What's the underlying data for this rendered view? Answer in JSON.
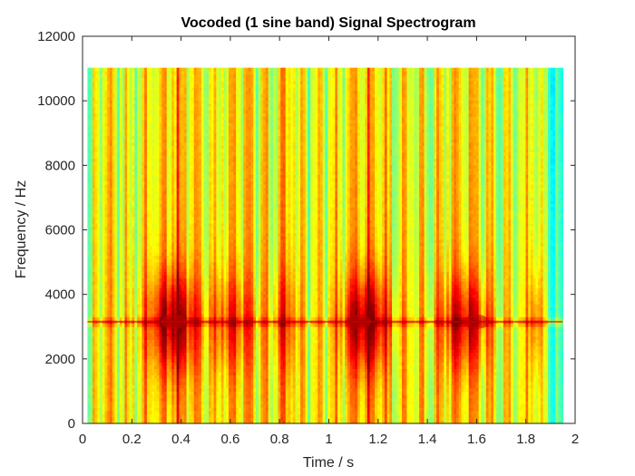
{
  "chart_data": {
    "type": "heatmap",
    "title": "Vocoded (1 sine band) Signal Spectrogram",
    "xlabel": "Time / s",
    "ylabel": "Frequency / Hz",
    "xlim": [
      0,
      2
    ],
    "ylim": [
      0,
      12000
    ],
    "xticks": [
      0,
      0.2,
      0.4,
      0.6,
      0.8,
      1,
      1.2,
      1.4,
      1.6,
      1.8,
      2
    ],
    "yticks": [
      0,
      2000,
      4000,
      6000,
      8000,
      10000,
      12000
    ],
    "grid": false,
    "colormap": "jet",
    "data_extent": {
      "time": [
        0.02,
        1.95
      ],
      "frequency": [
        0,
        11025
      ]
    },
    "carrier_frequency": 3150,
    "energy_peaks": [
      {
        "time": 0.37,
        "frequency": 3150
      },
      {
        "time": 1.12,
        "frequency": 3150
      },
      {
        "time": 1.6,
        "frequency": 3150
      }
    ],
    "colors": {
      "low": "#40ffbf",
      "mid": "#ffff00",
      "high": "#ff0000",
      "peak": "#c80000"
    }
  }
}
